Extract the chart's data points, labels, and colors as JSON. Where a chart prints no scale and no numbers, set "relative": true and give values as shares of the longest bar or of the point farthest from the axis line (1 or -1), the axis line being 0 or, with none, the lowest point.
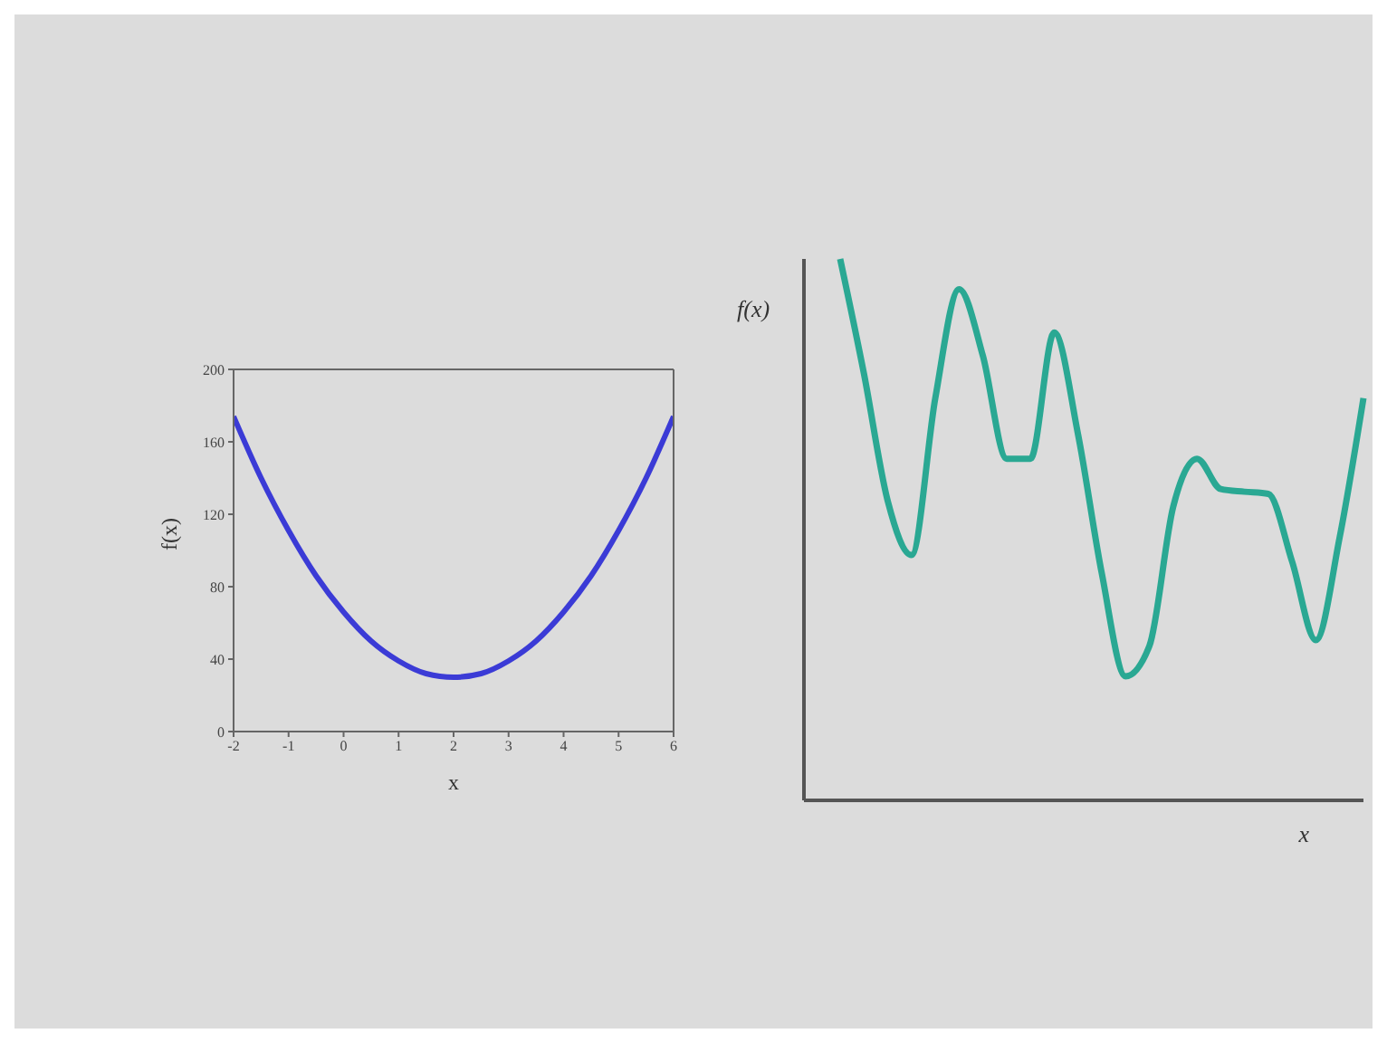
{
  "chart_data": [
    {
      "type": "line",
      "x": [
        -2,
        -1.5,
        -1,
        -0.5,
        0,
        0.5,
        1,
        1.5,
        2,
        2.5,
        3,
        3.5,
        4,
        4.5,
        5,
        5.5,
        6
      ],
      "values": [
        174,
        140,
        111,
        86,
        66,
        50,
        39,
        32,
        30,
        32,
        39,
        50,
        66,
        86,
        111,
        140,
        174
      ],
      "color": "#3b3bd6",
      "xlim": [
        -2,
        6
      ],
      "xticks": [
        -2,
        -1,
        0,
        1,
        2,
        3,
        4,
        5,
        6
      ],
      "ylim": [
        0,
        200
      ],
      "yticks": [
        0,
        40,
        80,
        120,
        160,
        200
      ],
      "xlabel": "x",
      "ylabel": "f(x)",
      "marker": "none"
    },
    {
      "type": "line",
      "relative": true,
      "categories": [
        null,
        null,
        null,
        null,
        null,
        null,
        null,
        null,
        null,
        null,
        null,
        null,
        null,
        null,
        null,
        null,
        null,
        null,
        null,
        null,
        null,
        null,
        null
      ],
      "values": [
        1.0,
        0.788,
        0.553,
        0.453,
        0.743,
        0.944,
        0.821,
        0.631,
        0.631,
        0.864,
        0.676,
        0.419,
        0.229,
        0.285,
        0.542,
        0.631,
        0.575,
        0.57,
        0.566,
        0.441,
        0.296,
        0.486,
        0.743
      ],
      "color": "#2aa893",
      "xlabel": "x",
      "ylabel": "f(x)",
      "marker": "none"
    }
  ]
}
